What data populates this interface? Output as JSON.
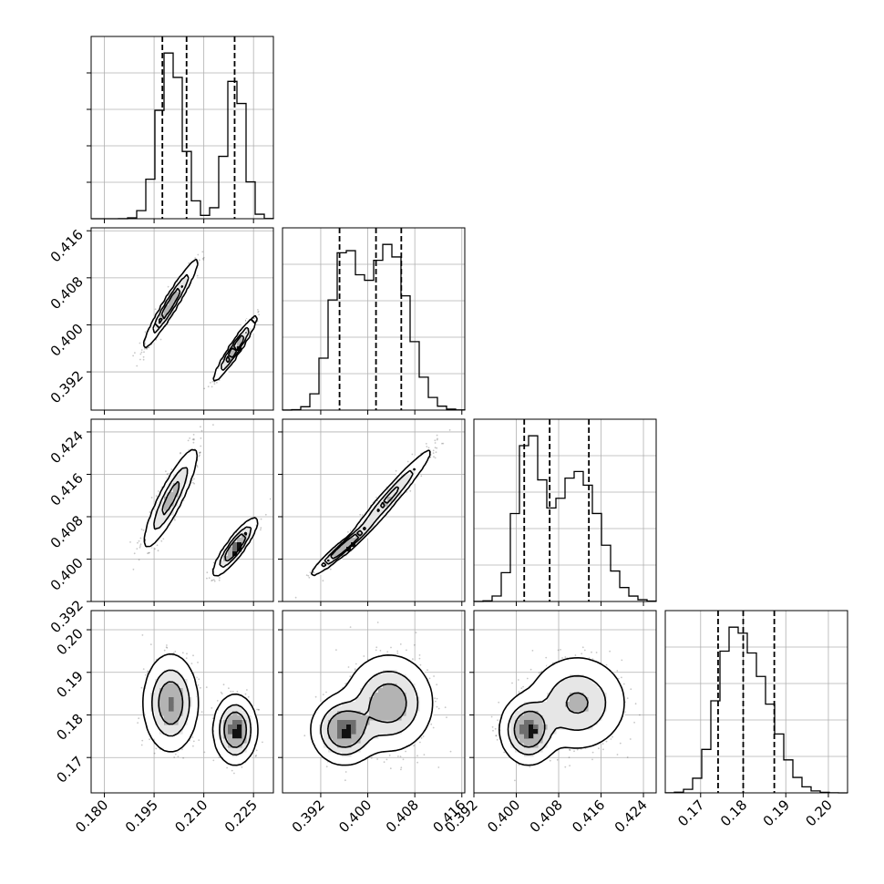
{
  "chart_data": {
    "type": "corner",
    "grid": true,
    "parameters": [
      {
        "range": [
          0.176,
          0.231
        ],
        "ticks": [
          "0.180",
          "0.195",
          "0.210",
          "0.225"
        ],
        "tick_values": [
          0.18,
          0.195,
          0.21,
          0.225
        ],
        "quantiles": [
          0.1975,
          0.2048,
          0.2193
        ],
        "modes": [
          {
            "mu": 0.2,
            "sigma": 0.0036,
            "w": 0.6
          },
          {
            "mu": 0.2195,
            "sigma": 0.0028,
            "w": 0.4
          }
        ]
      },
      {
        "range": [
          0.3855,
          0.4165
        ],
        "ticks": [
          "0.392",
          "0.400",
          "0.408",
          "0.416"
        ],
        "tick_values": [
          0.392,
          0.4,
          0.408,
          0.416
        ],
        "quantiles": [
          0.3952,
          0.4014,
          0.4057
        ],
        "modes": [
          {
            "mu": 0.4036,
            "sigma": 0.0033,
            "w": 0.6
          },
          {
            "mu": 0.396,
            "sigma": 0.0024,
            "w": 0.4
          }
        ]
      },
      {
        "range": [
          0.392,
          0.4264
        ],
        "ticks": [
          "0.392",
          "0.400",
          "0.408",
          "0.416",
          "0.424"
        ],
        "tick_values": [
          0.392,
          0.4,
          0.408,
          0.416,
          0.424
        ],
        "quantiles": [
          0.4015,
          0.4063,
          0.4137
        ],
        "modes": [
          {
            "mu": 0.4115,
            "sigma": 0.0042,
            "w": 0.6
          },
          {
            "mu": 0.4023,
            "sigma": 0.0023,
            "w": 0.4
          }
        ]
      },
      {
        "range": [
          0.1617,
          0.2045
        ],
        "ticks": [
          "0.17",
          "0.18",
          "0.19",
          "0.20"
        ],
        "tick_values": [
          0.17,
          0.18,
          0.19,
          0.2
        ],
        "quantiles": [
          0.1741,
          0.18,
          0.1873
        ],
        "modes": [
          {
            "mu": 0.1828,
            "sigma": 0.005,
            "w": 0.6
          },
          {
            "mu": 0.1765,
            "sigma": 0.0035,
            "w": 0.4
          }
        ]
      }
    ],
    "correlations": {
      "1-2": 0.96,
      "1-3": 0.88,
      "2-3": 0.97
    },
    "histogram_bins": 20
  }
}
